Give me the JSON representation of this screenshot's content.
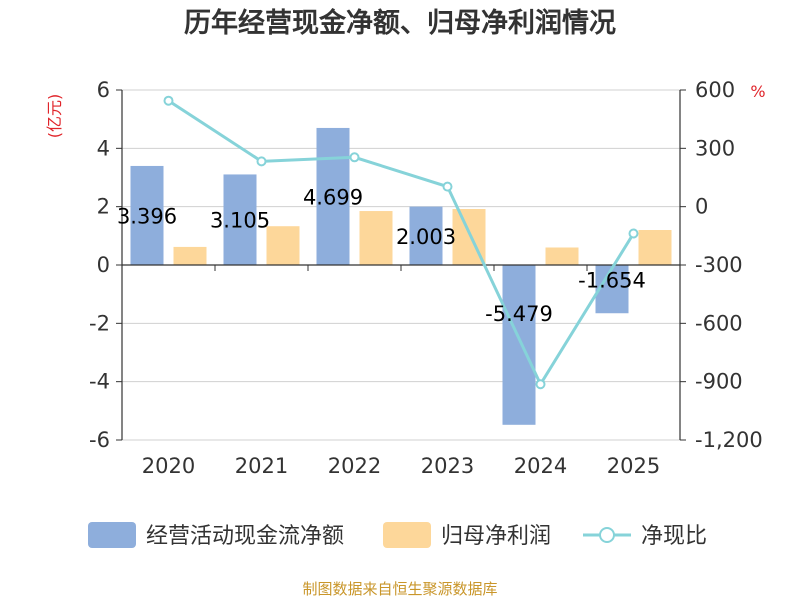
{
  "chart_data": {
    "type": "bar",
    "title": "历年经营现金净额、归母净利润情况",
    "categories": [
      "2020",
      "2021",
      "2022",
      "2023",
      "2024",
      "2025"
    ],
    "series": [
      {
        "name": "经营活动现金流净额",
        "type": "bar",
        "axis": "left",
        "color": "#8eaedc",
        "values": [
          3.396,
          3.105,
          4.699,
          2.003,
          -5.479,
          -1.654
        ],
        "labels": [
          "3.396",
          "3.105",
          "4.699",
          "2.003",
          "-5.479",
          "-1.654"
        ]
      },
      {
        "name": "归母净利润",
        "type": "bar",
        "axis": "left",
        "color": "#fdd79a",
        "values": [
          0.62,
          1.33,
          1.85,
          1.92,
          0.6,
          1.2
        ]
      },
      {
        "name": "净现比",
        "type": "line",
        "axis": "right",
        "color": "#86d3d9",
        "values": [
          545,
          233,
          254,
          103,
          -913,
          -138
        ]
      }
    ],
    "left_axis": {
      "unit": "(亿元)",
      "ylim": [
        -6,
        6
      ],
      "ticks": [
        6,
        4,
        2,
        0,
        -2,
        -4,
        -6
      ],
      "tick_labels": [
        "6",
        "4",
        "2",
        "0",
        "-2",
        "-4",
        "-6"
      ]
    },
    "right_axis": {
      "unit": "%",
      "ylim": [
        -1200,
        600
      ],
      "ticks": [
        600,
        300,
        0,
        -300,
        -600,
        -900,
        -1200
      ],
      "tick_labels": [
        "600",
        "300",
        "0",
        "-300",
        "-600",
        "-900",
        "-1,200"
      ]
    },
    "grid": true,
    "legend": "bottom",
    "source": "制图数据来自恒生聚源数据库"
  }
}
